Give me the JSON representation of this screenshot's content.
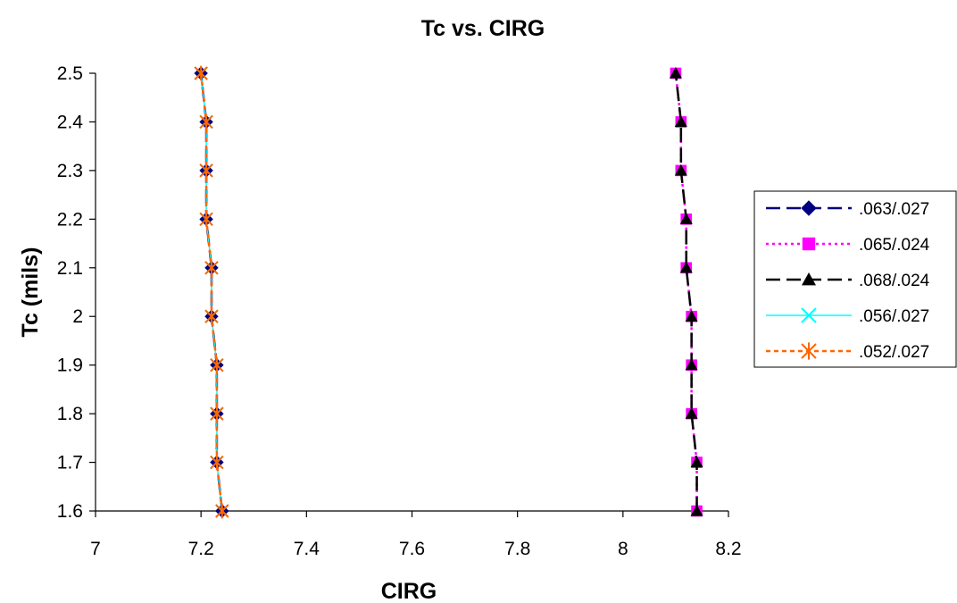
{
  "chart_data": {
    "type": "line",
    "title": "Tc vs. CIRG",
    "xlabel": "CIRG",
    "ylabel": "Tc (mils)",
    "xlim": [
      7,
      8.2
    ],
    "ylim": [
      1.6,
      2.5
    ],
    "x_ticks": [
      "7",
      "7.2",
      "7.4",
      "7.6",
      "7.8",
      "8",
      "8.2"
    ],
    "y_ticks": [
      "1.6",
      "1.7",
      "1.8",
      "1.9",
      "2",
      "2.1",
      "2.2",
      "2.3",
      "2.4",
      "2.5"
    ],
    "grid": false,
    "legend_position": "right",
    "series": [
      {
        "name": ".063/.027",
        "color": "#000080",
        "line_style": "long-dash",
        "marker": "diamond",
        "points": [
          [
            7.24,
            1.6
          ],
          [
            7.23,
            1.7
          ],
          [
            7.23,
            1.8
          ],
          [
            7.23,
            1.9
          ],
          [
            7.22,
            2.0
          ],
          [
            7.22,
            2.1
          ],
          [
            7.21,
            2.2
          ],
          [
            7.21,
            2.3
          ],
          [
            7.21,
            2.4
          ],
          [
            7.2,
            2.5
          ]
        ]
      },
      {
        "name": ".065/.024",
        "color": "#ff00ff",
        "line_style": "dotted",
        "marker": "square",
        "points": [
          [
            8.14,
            1.6
          ],
          [
            8.14,
            1.7
          ],
          [
            8.13,
            1.8
          ],
          [
            8.13,
            1.9
          ],
          [
            8.13,
            2.0
          ],
          [
            8.12,
            2.1
          ],
          [
            8.12,
            2.2
          ],
          [
            8.11,
            2.3
          ],
          [
            8.11,
            2.4
          ],
          [
            8.1,
            2.5
          ]
        ]
      },
      {
        "name": ".068/.024",
        "color": "#000000",
        "line_style": "long-dash",
        "marker": "triangle",
        "points": [
          [
            8.14,
            1.6
          ],
          [
            8.14,
            1.7
          ],
          [
            8.13,
            1.8
          ],
          [
            8.13,
            1.9
          ],
          [
            8.13,
            2.0
          ],
          [
            8.12,
            2.1
          ],
          [
            8.12,
            2.2
          ],
          [
            8.11,
            2.3
          ],
          [
            8.11,
            2.4
          ],
          [
            8.1,
            2.5
          ]
        ]
      },
      {
        "name": ".056/.027",
        "color": "#00ffff",
        "line_style": "solid",
        "marker": "x",
        "points": [
          [
            7.24,
            1.6
          ],
          [
            7.23,
            1.7
          ],
          [
            7.23,
            1.8
          ],
          [
            7.23,
            1.9
          ],
          [
            7.22,
            2.0
          ],
          [
            7.22,
            2.1
          ],
          [
            7.21,
            2.2
          ],
          [
            7.21,
            2.3
          ],
          [
            7.21,
            2.4
          ],
          [
            7.2,
            2.5
          ]
        ]
      },
      {
        "name": ".052/.027",
        "color": "#ff6600",
        "line_style": "short-dash",
        "marker": "asterisk",
        "points": [
          [
            7.24,
            1.6
          ],
          [
            7.23,
            1.7
          ],
          [
            7.23,
            1.8
          ],
          [
            7.23,
            1.9
          ],
          [
            7.22,
            2.0
          ],
          [
            7.22,
            2.1
          ],
          [
            7.21,
            2.2
          ],
          [
            7.21,
            2.3
          ],
          [
            7.21,
            2.4
          ],
          [
            7.2,
            2.5
          ]
        ]
      }
    ]
  }
}
